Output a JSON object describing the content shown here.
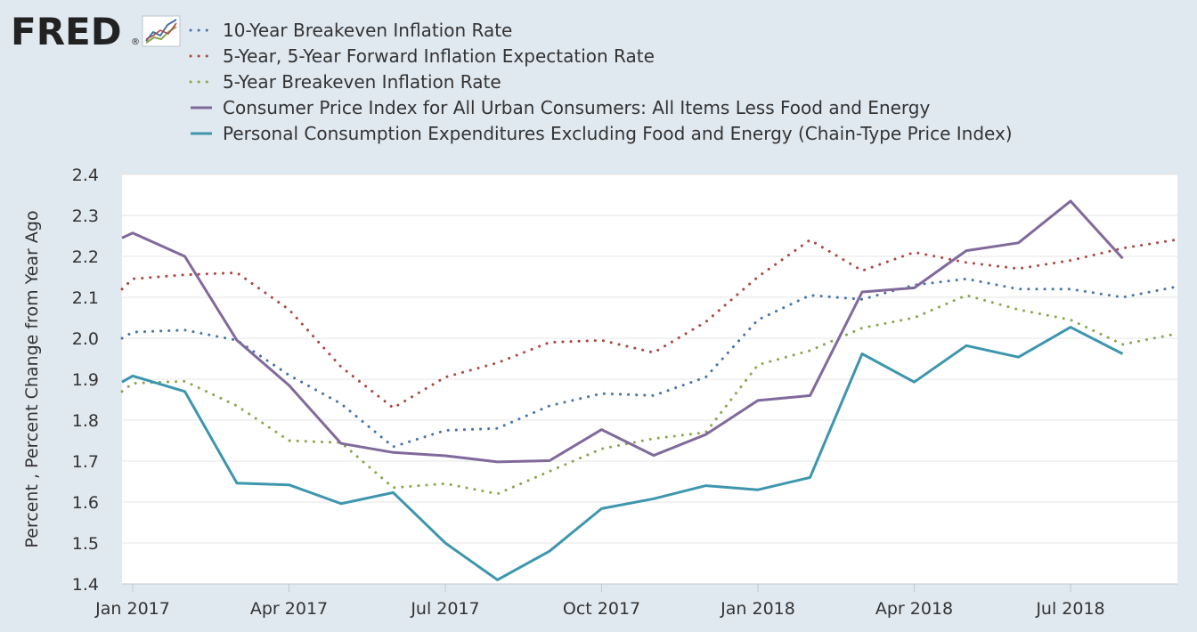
{
  "logo": {
    "text": "FRED",
    "mark": "®",
    "icon": "fred-chart-icon"
  },
  "chart_data": {
    "type": "line",
    "title": "",
    "xlabel": "",
    "ylabel": "Percent , Percent Change from Year Ago",
    "ylim": [
      1.4,
      2.4
    ],
    "yticks": [
      "1.4",
      "1.5",
      "1.6",
      "1.7",
      "1.8",
      "1.9",
      "2.0",
      "2.1",
      "2.2",
      "2.3",
      "2.4"
    ],
    "xticks": [
      "Jan 2017",
      "Apr 2017",
      "Jul 2017",
      "Oct 2017",
      "Jan 2018",
      "Apr 2018",
      "Jul 2018"
    ],
    "x_months": [
      "2016-12",
      "2017-01",
      "2017-02",
      "2017-03",
      "2017-04",
      "2017-05",
      "2017-06",
      "2017-07",
      "2017-08",
      "2017-09",
      "2017-10",
      "2017-11",
      "2017-12",
      "2018-01",
      "2018-02",
      "2018-03",
      "2018-04",
      "2018-05",
      "2018-06",
      "2018-07",
      "2018-08",
      "2018-09"
    ],
    "grid": true,
    "legend": "top-left",
    "series": [
      {
        "name": "10-Year Breakeven Inflation Rate",
        "color": "#4572a7",
        "style": "dotted",
        "values": [
          2.0,
          2.015,
          2.02,
          1.995,
          1.91,
          1.84,
          1.735,
          1.775,
          1.78,
          1.835,
          1.865,
          1.86,
          1.905,
          2.045,
          2.105,
          2.095,
          2.13,
          2.145,
          2.12,
          2.12,
          2.1,
          2.125
        ]
      },
      {
        "name": "5-Year, 5-Year Forward Inflation Expectation Rate",
        "color": "#aa4643",
        "style": "dotted",
        "values": [
          2.12,
          2.145,
          2.155,
          2.16,
          2.07,
          1.93,
          1.83,
          1.905,
          1.94,
          1.99,
          1.995,
          1.965,
          2.04,
          2.15,
          2.24,
          2.165,
          2.21,
          2.185,
          2.17,
          2.19,
          2.22,
          2.24
        ]
      },
      {
        "name": "5-Year Breakeven Inflation Rate",
        "color": "#89a54e",
        "style": "dotted",
        "values": [
          1.87,
          1.89,
          1.895,
          1.835,
          1.75,
          1.745,
          1.635,
          1.645,
          1.62,
          1.675,
          1.73,
          1.755,
          1.77,
          1.935,
          1.97,
          2.025,
          2.05,
          2.105,
          2.07,
          2.045,
          1.985,
          2.01
        ]
      },
      {
        "name": "Consumer Price Index for All Urban Consumers: All Items Less Food and Energy",
        "color": "#80699b",
        "style": "solid",
        "values": [
          2.245,
          2.257,
          2.2,
          1.995,
          1.885,
          1.743,
          1.721,
          1.713,
          1.698,
          1.701,
          1.777,
          1.714,
          1.765,
          1.848,
          1.86,
          2.113,
          2.123,
          2.214,
          2.233,
          2.335,
          2.195,
          null
        ]
      },
      {
        "name": "Personal Consumption Expenditures Excluding Food and Energy (Chain-Type Price Index)",
        "color": "#3d96ae",
        "style": "solid",
        "values": [
          1.893,
          1.908,
          1.87,
          1.646,
          1.642,
          1.596,
          1.623,
          1.5,
          1.41,
          1.48,
          1.584,
          1.608,
          1.64,
          1.63,
          1.66,
          1.962,
          1.893,
          1.982,
          1.954,
          2.027,
          1.962,
          null
        ]
      }
    ]
  }
}
